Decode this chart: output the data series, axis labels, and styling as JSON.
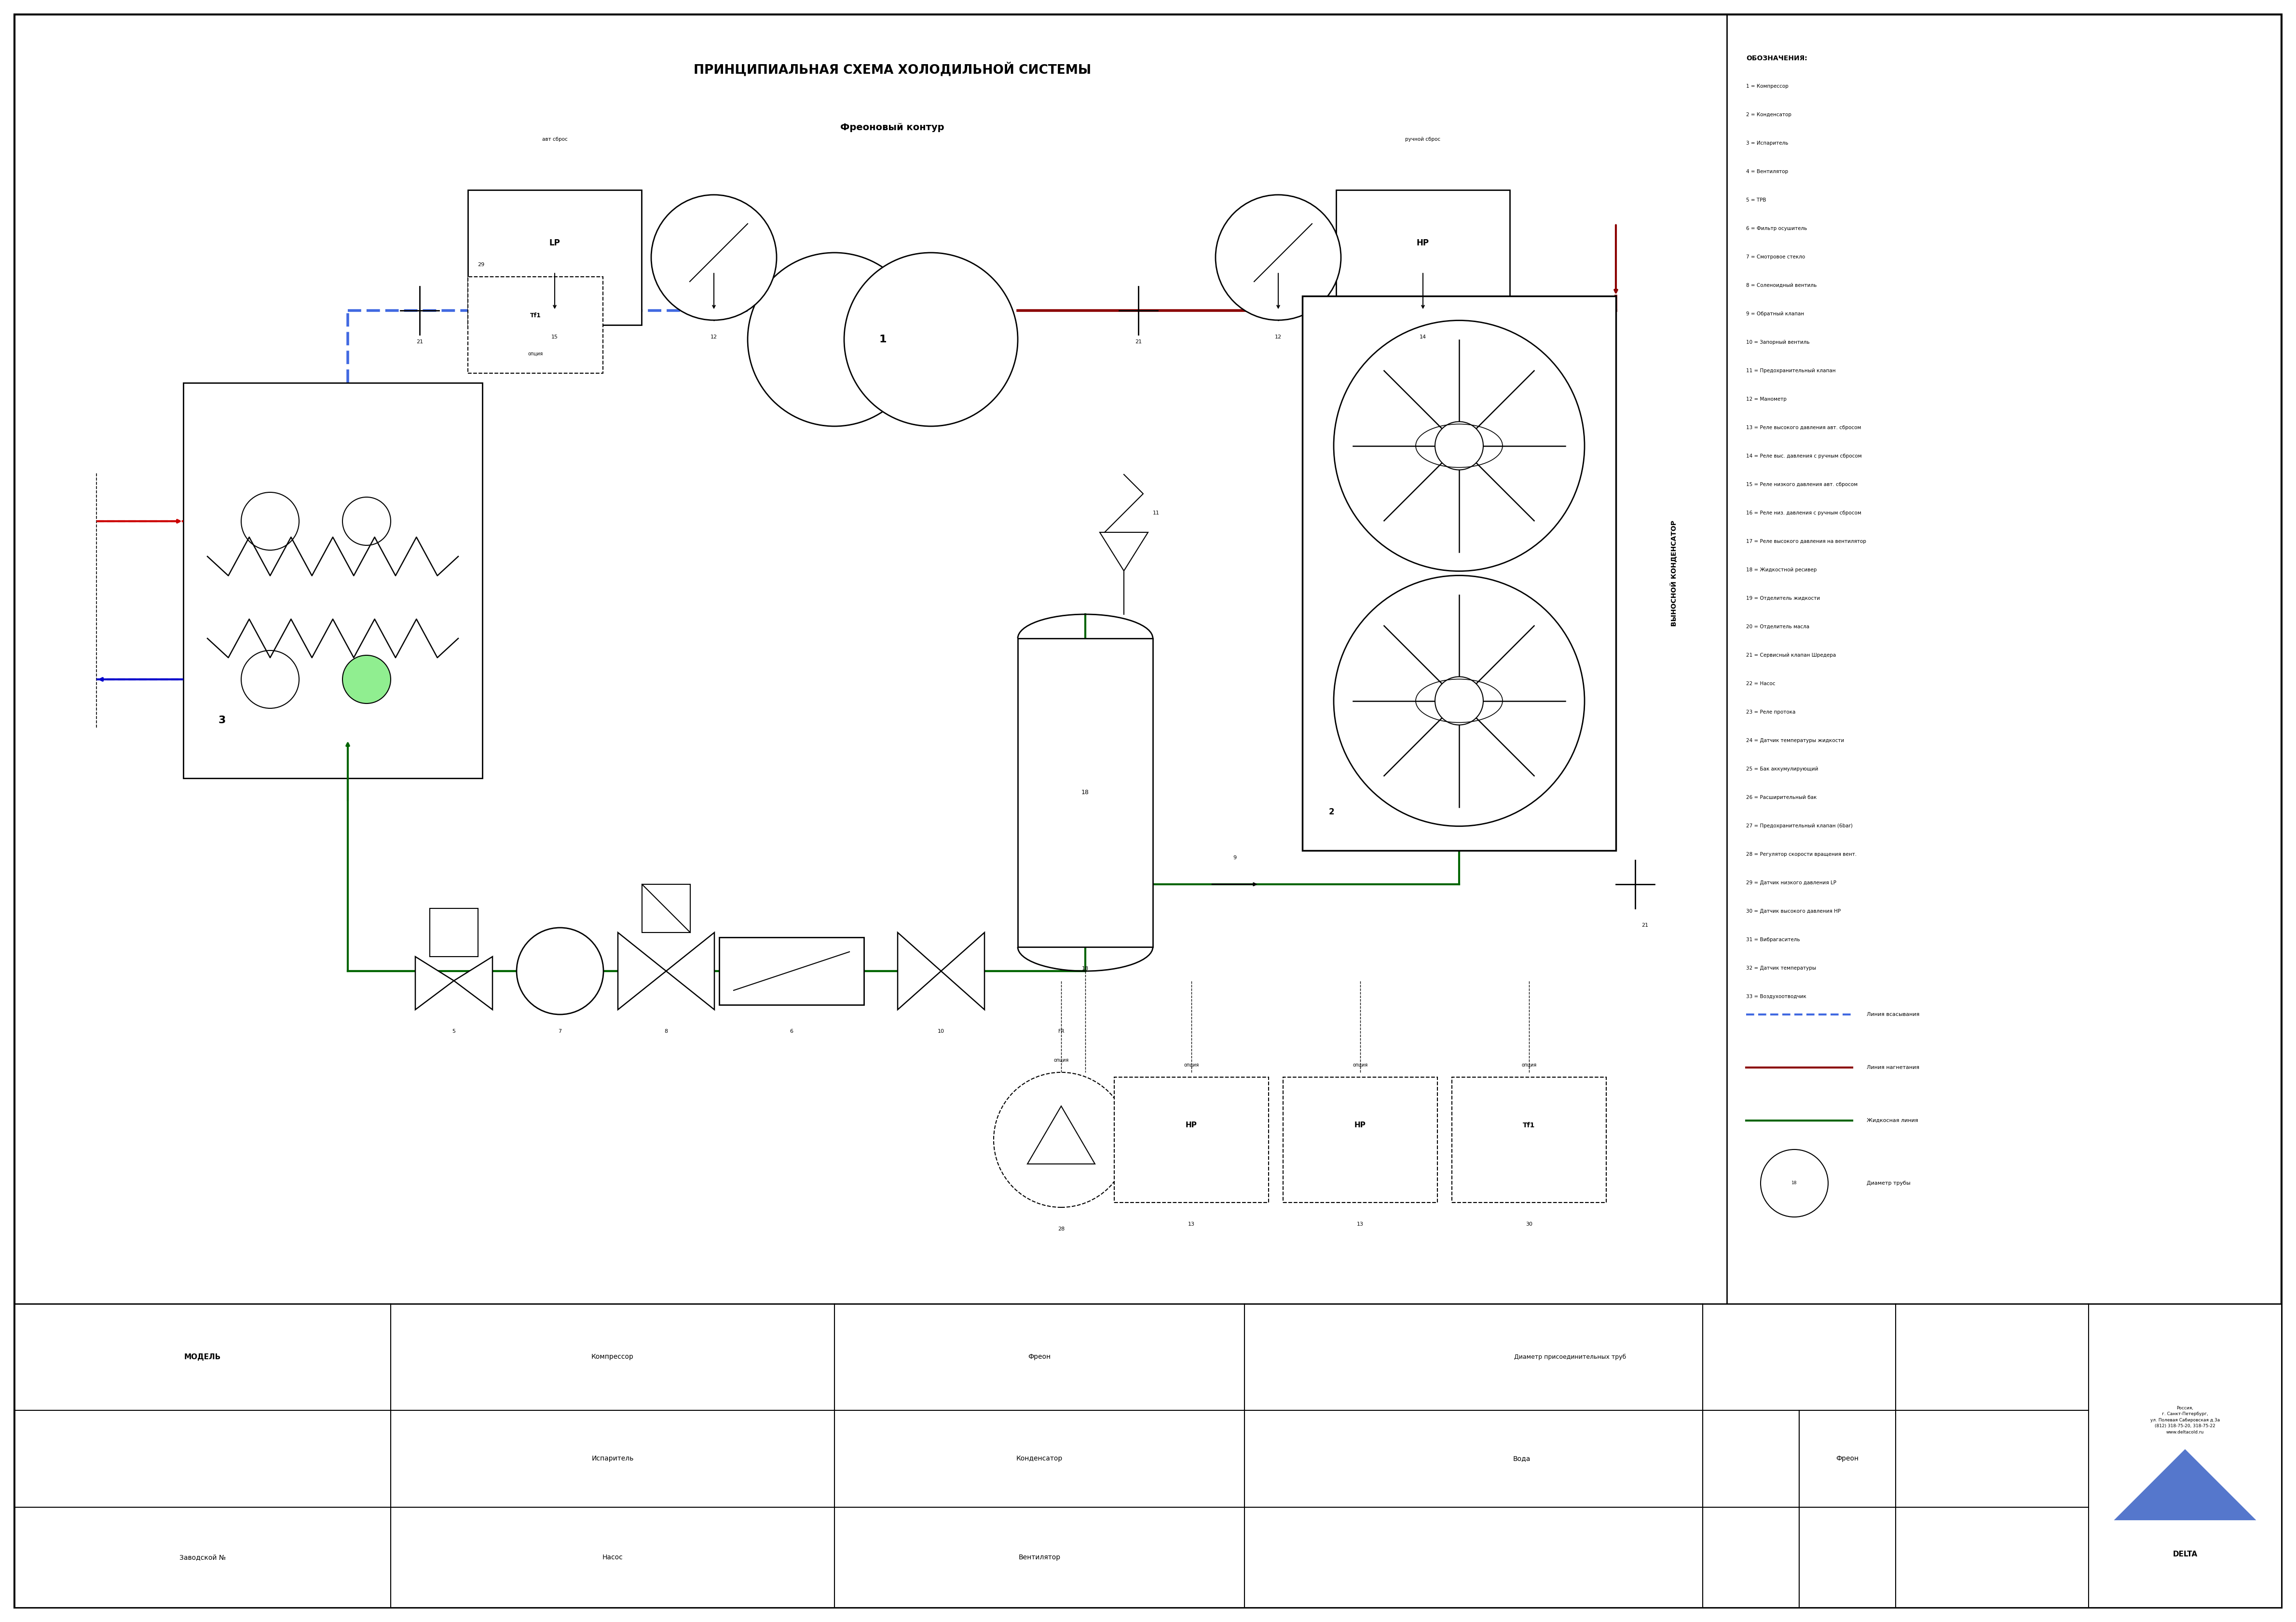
{
  "title": "ПРИНЦИПИАЛЬНАЯ СХЕМА ХОЛОДИЛЬНОЙ СИСТЕМЫ",
  "subtitle": "Фреоновый контур",
  "bg_color": "#ffffff",
  "line_colors": {
    "suction": "#4169E1",
    "discharge": "#8B0000",
    "liquid": "#006400"
  },
  "designations_title": "ОБОЗНАЧЕНИЯ:",
  "designations": [
    "1 = Компрессор",
    "2 = Конденсатор",
    "3 = Испаритель",
    "4 = Вентилятор",
    "5 = ТРВ",
    "6 = Фильтр осушитель",
    "7 = Смотровое стекло",
    "8 = Соленоидный вентиль",
    "9 = Обратный клапан",
    "10 = Запорный вентиль",
    "11 = Предохранительный клапан",
    "12 = Манометр",
    "13 = Реле высокого давления авт. сбросом",
    "14 = Реле выс. давления с ручным сбросом",
    "15 = Реле низкого давления авт. сбросом",
    "16 = Реле низ. давления с ручным сбросом",
    "17 = Реле высокого давления на вентилятор",
    "18 = Жидкостной ресивер",
    "19 = Отделитель жидкости",
    "20 = Отделитель масла",
    "21 = Сервисный клапан Шредера",
    "22 = Насос",
    "23 = Реле протока",
    "24 = Датчик температуры жидкости",
    "25 = Бак аккумулирующий",
    "26 = Расширительный бак",
    "27 = Предохранительный клапан (6bar)",
    "28 = Регулятор скорости вращения вент.",
    "29 = Датчик низкого давления LP",
    "30 = Датчик высокого давления HP",
    "31 = Вибрагаситель",
    "32 = Датчик температуры",
    "33 = Воздухоотводчик"
  ],
  "legend": {
    "suction_label": "Линия всасывания",
    "discharge_label": "Линия нагнетания",
    "liquid_label": "Жидкосная линия",
    "diameter_label": "Диаметр трубы"
  },
  "table": {
    "col1": [
      "МОДЕЛЬ",
      "",
      "Заводской №"
    ],
    "col2": [
      "Компрессор",
      "Испаритель",
      "Насос"
    ],
    "col3": [
      "Фреон",
      "Конденсатор",
      "Вентилятор"
    ],
    "header4": "Диаметр присоединительных труб",
    "subh4a": "Вода",
    "subh4b": "Фреон"
  },
  "company_text": "Россия,\nг. Санкт-Петербург,\nул. Полевая Сабировская д.3а\n(812) 318-75-20, 318-75-22\nwww.deltacold.ru",
  "company_name": "DELTA"
}
